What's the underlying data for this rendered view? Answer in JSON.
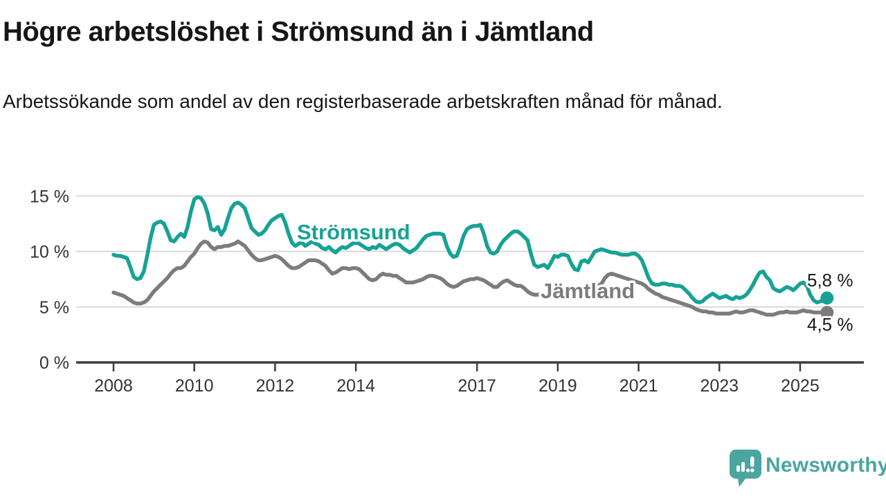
{
  "header": {
    "title": "Högre arbetslöshet i Strömsund än i Jämtland",
    "subtitle": "Arbetssökande som andel av den registerbaserade arbetskraften månad för månad."
  },
  "branding": {
    "name": "Newsworthy",
    "icon": "bar-chart-speech-bubble-icon",
    "color": "#4BA5A0"
  },
  "colors": {
    "stromsund": "#17A295",
    "jamtland": "#7C7C7C",
    "grid": "#D9D9D9",
    "axis": "#3C3C3C",
    "tick_text": "#333333",
    "annotation_text": "#1A1A1A",
    "background": "#FFFFFF"
  },
  "chart_data": {
    "type": "line",
    "title": "Högre arbetslöshet i Strömsund än i Jämtland",
    "subtitle": "Arbetssökande som andel av den registerbaserade arbetskraften månad för månad.",
    "x_start_year": 2008,
    "x_step_years": 0.0833333,
    "x_end_label_month": "2025-09",
    "ylim": [
      0,
      16
    ],
    "grid": "horizontal",
    "legend_position": "inline-labels",
    "y_ticks": [
      {
        "value": 0,
        "label": "0 %"
      },
      {
        "value": 5,
        "label": "5 %"
      },
      {
        "value": 10,
        "label": "10 %"
      },
      {
        "value": 15,
        "label": "15 %"
      }
    ],
    "x_ticks": [
      {
        "value": 2008,
        "label": "2008"
      },
      {
        "value": 2010,
        "label": "2010"
      },
      {
        "value": 2012,
        "label": "2012"
      },
      {
        "value": 2014,
        "label": "2014"
      },
      {
        "value": 2017,
        "label": "2017"
      },
      {
        "value": 2019,
        "label": "2019"
      },
      {
        "value": 2021,
        "label": "2021"
      },
      {
        "value": 2023,
        "label": "2023"
      },
      {
        "value": 2025,
        "label": "2025"
      }
    ],
    "series": [
      {
        "key": "stromsund",
        "name": "Strömsund",
        "color": "#17A295",
        "end_label": "5,8 %",
        "last_value": 5.8,
        "values": [
          9.7,
          9.6,
          9.6,
          9.5,
          9.4,
          8.6,
          7.7,
          7.5,
          7.6,
          8.2,
          9.6,
          11.2,
          12.4,
          12.6,
          12.7,
          12.5,
          11.8,
          11.0,
          10.9,
          11.3,
          11.6,
          11.3,
          12.2,
          13.6,
          14.7,
          14.9,
          14.8,
          14.3,
          13.4,
          12.0,
          11.9,
          12.2,
          11.5,
          12.0,
          13.0,
          13.9,
          14.3,
          14.4,
          14.2,
          13.9,
          13.0,
          12.1,
          11.8,
          11.5,
          11.6,
          11.9,
          12.4,
          12.8,
          13.0,
          13.2,
          13.3,
          12.6,
          11.6,
          10.8,
          10.5,
          10.7,
          10.8,
          10.5,
          10.7,
          10.9,
          10.7,
          10.6,
          10.3,
          10.2,
          10.4,
          10.1,
          9.9,
          10.2,
          10.4,
          10.3,
          10.5,
          10.7,
          10.8,
          10.7,
          10.5,
          10.3,
          10.2,
          10.4,
          10.3,
          10.6,
          10.4,
          10.2,
          10.4,
          10.6,
          10.7,
          10.6,
          10.3,
          10.1,
          9.9,
          10.1,
          10.3,
          10.7,
          11.1,
          11.4,
          11.5,
          11.6,
          11.6,
          11.6,
          11.5,
          10.5,
          9.8,
          9.5,
          9.6,
          10.4,
          11.4,
          12.0,
          12.2,
          12.3,
          12.3,
          12.4,
          11.6,
          10.5,
          9.9,
          9.8,
          10.0,
          10.6,
          11.0,
          11.3,
          11.6,
          11.8,
          11.8,
          11.6,
          11.3,
          11.0,
          9.8,
          8.8,
          8.6,
          8.7,
          8.8,
          8.5,
          9.0,
          9.6,
          9.5,
          9.7,
          9.7,
          9.6,
          8.9,
          8.4,
          8.3,
          9.1,
          9.2,
          9.0,
          9.5,
          10.0,
          10.1,
          10.2,
          10.1,
          10.0,
          9.9,
          9.9,
          9.8,
          9.7,
          9.7,
          9.7,
          9.8,
          9.8,
          9.6,
          9.2,
          8.4,
          7.6,
          7.1,
          7.0,
          7.0,
          7.1,
          7.1,
          7.0,
          7.0,
          6.9,
          6.9,
          6.8,
          6.5,
          6.2,
          5.8,
          5.5,
          5.4,
          5.5,
          5.8,
          6.0,
          6.2,
          6.0,
          5.8,
          5.9,
          6.0,
          5.8,
          5.7,
          5.9,
          5.8,
          5.9,
          6.1,
          6.5,
          7.0,
          7.6,
          8.1,
          8.2,
          7.7,
          7.4,
          6.7,
          6.5,
          6.4,
          6.6,
          6.8,
          6.7,
          6.5,
          6.8,
          7.1,
          7.2,
          6.9,
          6.1,
          5.6,
          5.4,
          5.5,
          5.6,
          5.8
        ]
      },
      {
        "key": "jamtland",
        "name": "Jämtland",
        "color": "#7C7C7C",
        "end_label": "4,5 %",
        "last_value": 4.5,
        "values": [
          6.3,
          6.2,
          6.1,
          6.0,
          5.8,
          5.6,
          5.4,
          5.3,
          5.3,
          5.4,
          5.6,
          6.0,
          6.4,
          6.7,
          7.0,
          7.3,
          7.6,
          8.0,
          8.3,
          8.5,
          8.5,
          8.7,
          9.1,
          9.5,
          9.8,
          10.3,
          10.7,
          10.9,
          10.8,
          10.4,
          10.2,
          10.4,
          10.4,
          10.5,
          10.5,
          10.6,
          10.7,
          10.9,
          10.7,
          10.5,
          10.1,
          9.7,
          9.4,
          9.2,
          9.2,
          9.3,
          9.4,
          9.5,
          9.6,
          9.5,
          9.3,
          9.0,
          8.7,
          8.5,
          8.5,
          8.6,
          8.8,
          9.0,
          9.2,
          9.2,
          9.2,
          9.1,
          8.9,
          8.7,
          8.3,
          8.0,
          8.1,
          8.3,
          8.5,
          8.5,
          8.4,
          8.5,
          8.5,
          8.4,
          8.1,
          7.8,
          7.5,
          7.4,
          7.5,
          7.8,
          8.0,
          7.9,
          7.9,
          7.8,
          7.8,
          7.6,
          7.4,
          7.2,
          7.2,
          7.2,
          7.3,
          7.4,
          7.5,
          7.7,
          7.8,
          7.8,
          7.7,
          7.6,
          7.4,
          7.1,
          6.9,
          6.8,
          6.9,
          7.1,
          7.3,
          7.4,
          7.5,
          7.5,
          7.6,
          7.5,
          7.4,
          7.2,
          7.0,
          6.8,
          6.8,
          7.1,
          7.3,
          7.4,
          7.2,
          7.0,
          6.9,
          6.9,
          6.7,
          6.4,
          6.2,
          6.1,
          6.1,
          6.2,
          6.2,
          6.1,
          6.2,
          6.3,
          6.3,
          6.2,
          6.1,
          6.0,
          5.9,
          5.8,
          5.9,
          6.0,
          6.0,
          6.1,
          6.2,
          6.6,
          6.9,
          7.1,
          7.6,
          7.9,
          8.0,
          7.9,
          7.8,
          7.7,
          7.6,
          7.5,
          7.4,
          7.3,
          7.2,
          7.1,
          6.9,
          6.6,
          6.4,
          6.2,
          6.1,
          5.9,
          5.8,
          5.7,
          5.6,
          5.5,
          5.4,
          5.3,
          5.2,
          5.1,
          5.0,
          4.8,
          4.7,
          4.6,
          4.6,
          4.5,
          4.5,
          4.4,
          4.4,
          4.4,
          4.4,
          4.4,
          4.5,
          4.6,
          4.5,
          4.5,
          4.6,
          4.7,
          4.7,
          4.6,
          4.5,
          4.4,
          4.3,
          4.3,
          4.3,
          4.4,
          4.5,
          4.5,
          4.6,
          4.5,
          4.5,
          4.5,
          4.6,
          4.7,
          4.6,
          4.6,
          4.5,
          4.5,
          4.5,
          4.5,
          4.5
        ]
      }
    ]
  }
}
